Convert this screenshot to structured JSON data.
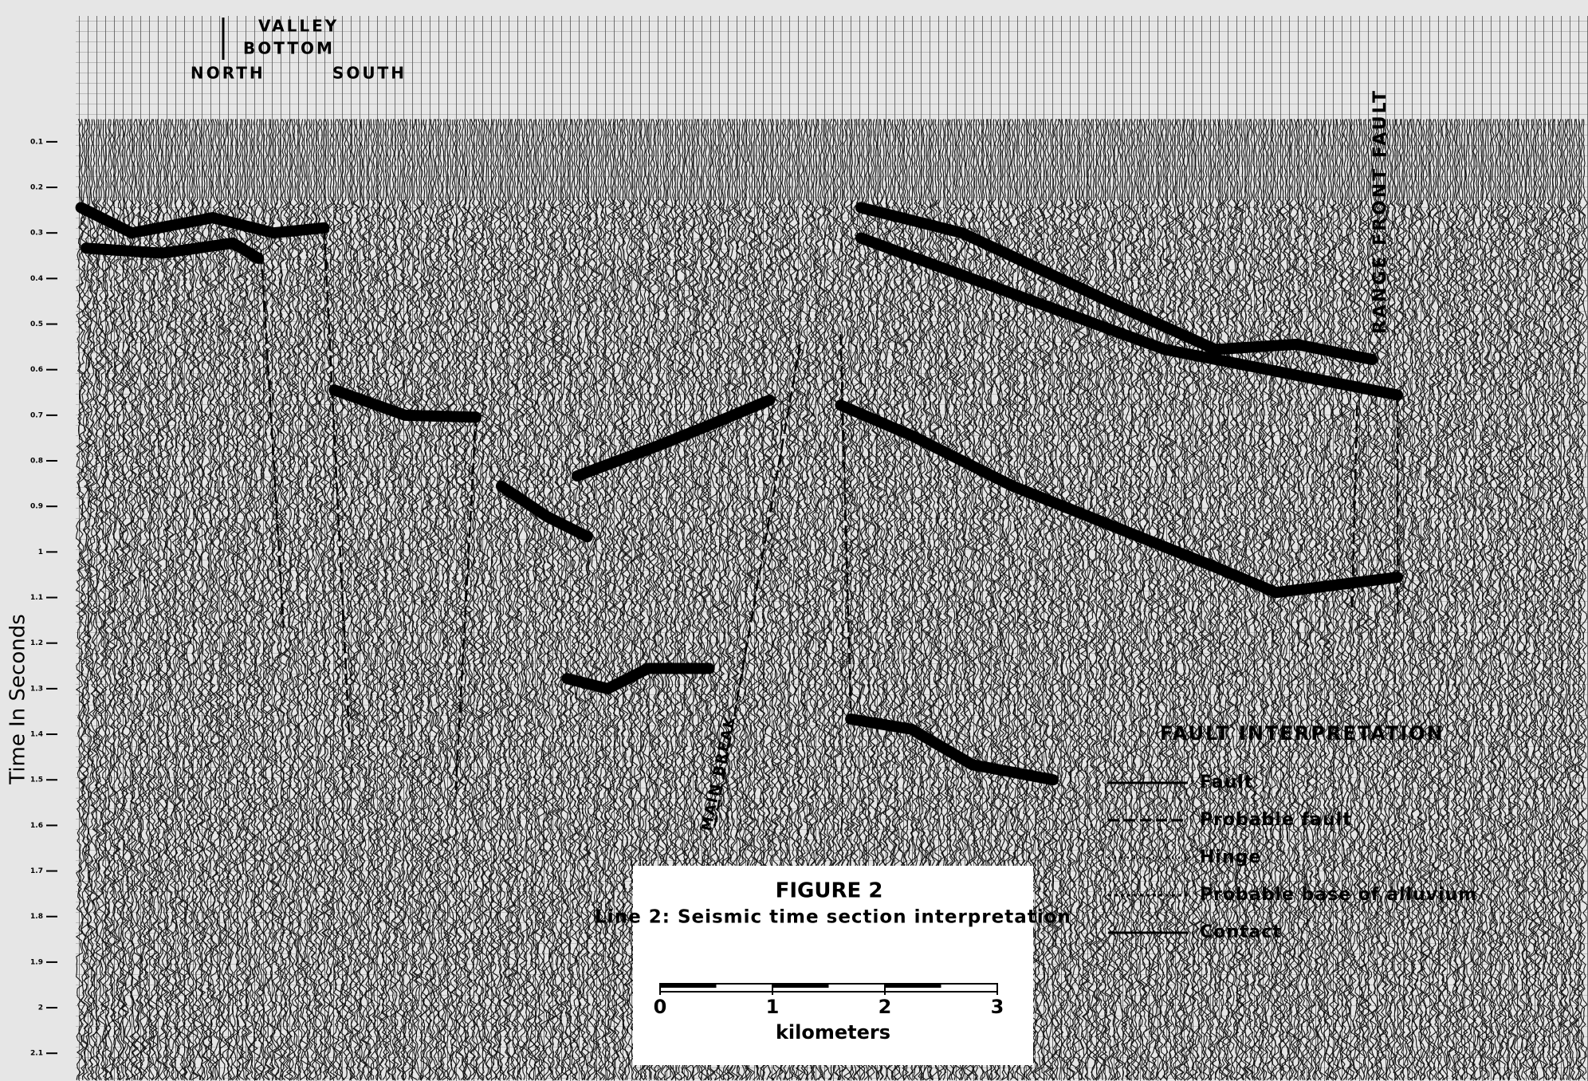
{
  "chart_data": {
    "type": "seismic-section",
    "title": "FIGURE 2",
    "subtitle": "Line 2: Seismic time section interpretation",
    "y_label": "Time In Seconds",
    "ylim": [
      0,
      2.1
    ],
    "yticks": [
      0.1,
      0.2,
      0.3,
      0.4,
      0.5,
      0.6,
      0.7,
      0.8,
      0.9,
      1.0,
      1.1,
      1.2,
      1.3,
      1.4,
      1.5,
      1.6,
      1.7,
      1.8,
      1.9,
      2.0,
      2.1
    ],
    "annotations": {
      "valley": "VALLEY",
      "bottom": "BOTTOM",
      "north": "NORTH",
      "south": "SOUTH",
      "range_front": "RANGE FRONT FAULT",
      "main_break": "MAIN BREAK"
    },
    "legend": {
      "title": "FAULT INTERPRETATION",
      "items": [
        "Fault",
        "Probable fault",
        "Hinge",
        "Probable base of alluvium",
        "Contact"
      ]
    },
    "scale_bar": {
      "ticks": [
        0,
        1,
        2,
        3
      ],
      "unit": "kilometers"
    }
  }
}
